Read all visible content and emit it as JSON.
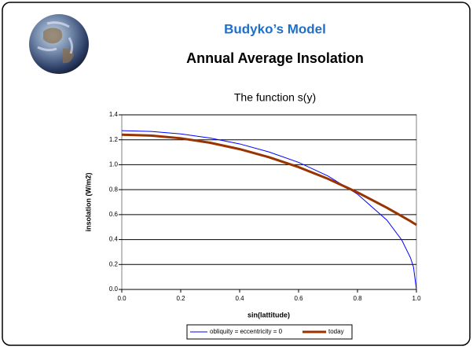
{
  "header": {
    "title": "Budyko’s Model",
    "subtitle": "Annual Average Insolation"
  },
  "chart_data": {
    "type": "line",
    "title": "The function s(y)",
    "x_label": "sin(lattitude)",
    "y_label": "insolation (W/m2)",
    "x": [
      0,
      0.1,
      0.2,
      0.3,
      0.4,
      0.5,
      0.6,
      0.7,
      0.8,
      0.9,
      0.95,
      0.98,
      0.99,
      1.0
    ],
    "series": [
      {
        "name": "obliquity = eccentricity = 0",
        "color": "#0000ff",
        "width": 1,
        "values": [
          1.273,
          1.267,
          1.247,
          1.214,
          1.167,
          1.102,
          1.019,
          0.909,
          0.764,
          0.555,
          0.397,
          0.253,
          0.18,
          0
        ]
      },
      {
        "name": "today",
        "color": "#993300",
        "width": 3,
        "values": [
          1.241,
          1.234,
          1.212,
          1.176,
          1.125,
          1.06,
          0.981,
          0.887,
          0.778,
          0.655,
          0.588,
          0.547,
          0.532,
          0.518
        ]
      }
    ],
    "xlim": [
      0,
      1
    ],
    "ylim": [
      0,
      1.4
    ],
    "xticks": [
      {
        "value": 0,
        "label": "0.0"
      },
      {
        "value": 0.2,
        "label": "0.2"
      },
      {
        "value": 0.4,
        "label": "0.4"
      },
      {
        "value": 0.6,
        "label": "0.6"
      },
      {
        "value": 0.8,
        "label": "0.8"
      },
      {
        "value": 1,
        "label": "1.0"
      }
    ],
    "yticks": [
      {
        "value": 0,
        "label": "0.0"
      },
      {
        "value": 0.2,
        "label": "0.2"
      },
      {
        "value": 0.4,
        "label": "0.4"
      },
      {
        "value": 0.6,
        "label": "0.6"
      },
      {
        "value": 0.8,
        "label": "0.8"
      },
      {
        "value": 1,
        "label": "1.0"
      },
      {
        "value": 1.2,
        "label": "1.2"
      },
      {
        "value": 1.4,
        "label": "1.4"
      }
    ],
    "grid": true,
    "legend": "bottom"
  }
}
